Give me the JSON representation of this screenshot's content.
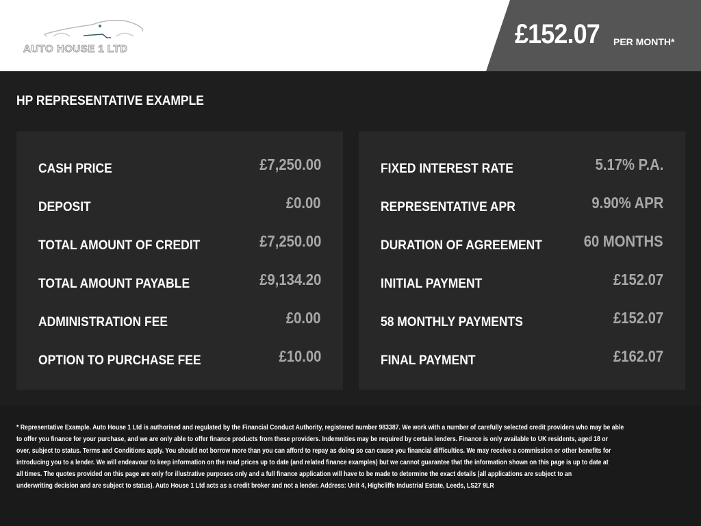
{
  "header": {
    "logo_text": "AUTO HOUSE 1 LTD",
    "price": "£152.07",
    "per_month": "PER MONTH*",
    "colors": {
      "price_box": "#555555",
      "background": "#1e1e1e",
      "panel": "#282828"
    }
  },
  "title": "HP REPRESENTATIVE EXAMPLE",
  "left": [
    {
      "label": "CASH PRICE",
      "value": "£7,250.00"
    },
    {
      "label": "DEPOSIT",
      "value": "£0.00"
    },
    {
      "label": "TOTAL AMOUNT OF CREDIT",
      "value": "£7,250.00"
    },
    {
      "label": "TOTAL AMOUNT PAYABLE",
      "value": "£9,134.20"
    },
    {
      "label": "ADMINISTRATION FEE",
      "value": "£0.00"
    },
    {
      "label": "OPTION TO PURCHASE FEE",
      "value": "£10.00"
    }
  ],
  "right": [
    {
      "label": "FIXED INTEREST RATE",
      "value": "5.17% P.A."
    },
    {
      "label": "REPRESENTATIVE APR",
      "value": "9.90% APR"
    },
    {
      "label": "DURATION OF AGREEMENT",
      "value": "60 MONTHS"
    },
    {
      "label": "INITIAL PAYMENT",
      "value": "£152.07"
    },
    {
      "label": "58 MONTHLY PAYMENTS",
      "value": "£152.07"
    },
    {
      "label": "FINAL PAYMENT",
      "value": "£162.07"
    }
  ],
  "disclaimer": [
    "* Representative Example. Auto House 1 Ltd is authorised and regulated by the Financial Conduct Authority, registered number 983387. We work with a number of carefully selected credit providers who may be able",
    "to offer you finance for your purchase, and we are only able to offer finance products from these providers. Indemnities may be required by certain lenders. Finance is only available to UK residents, aged 18 or",
    "over, subject to status. Terms and Conditions apply. You should not borrow more than you can afford to repay as doing so can cause you financial difficulties. We may receive a commission or other benefits for",
    "introducing you to a lender. We will endeavour to keep information on the road prices up to date (and related finance examples) but we cannot guarantee that the information shown on this page is up to date at",
    "all times. The quotes provided on this page are only for illustrative purposes only and a full finance application will have to be made to determine the exact details (all applications are subject to an",
    "underwriting decision and are subject to status). Auto House 1 Ltd acts as a credit broker and not a lender. Address: Unit 4, Highcliffe Industrial Estate, Leeds, LS27 9LR"
  ]
}
